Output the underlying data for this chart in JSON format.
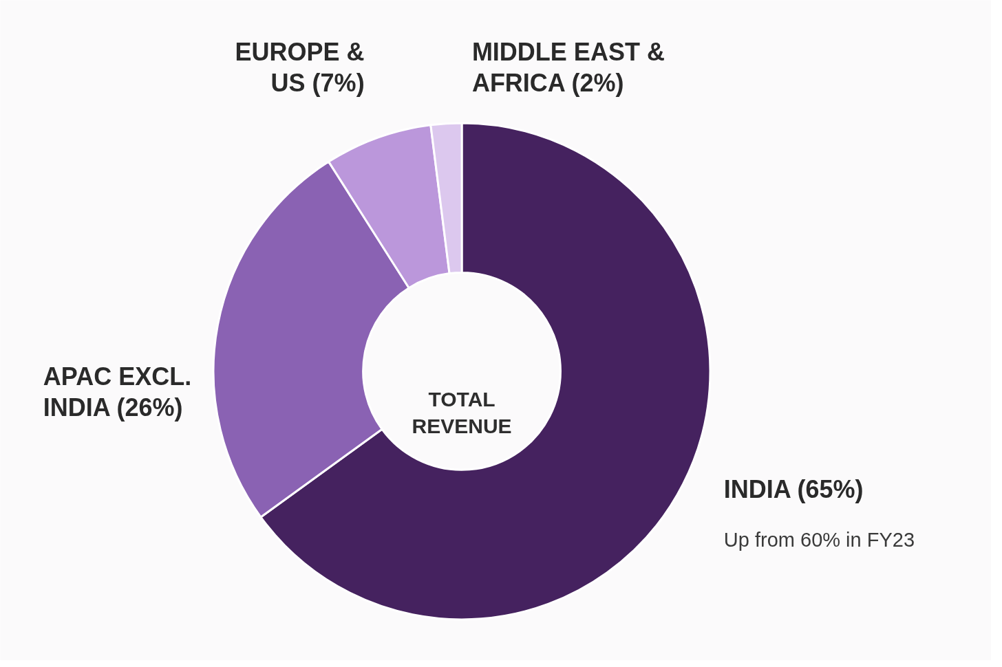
{
  "chart_data": {
    "type": "donut",
    "title": "TOTAL REVENUE",
    "categories": [
      "INDIA",
      "APAC EXCL. INDIA",
      "EUROPE & US",
      "MIDDLE EAST & AFRICA"
    ],
    "values": [
      65,
      26,
      7,
      2
    ],
    "value_labels": [
      "(65%)",
      "(26%)",
      "(7%)",
      "(2%)"
    ],
    "colors": [
      "#45225f",
      "#8a62b3",
      "#bb97db",
      "#dcc8ee"
    ],
    "annotations": [
      "Up from 60% in FY23"
    ]
  }
}
